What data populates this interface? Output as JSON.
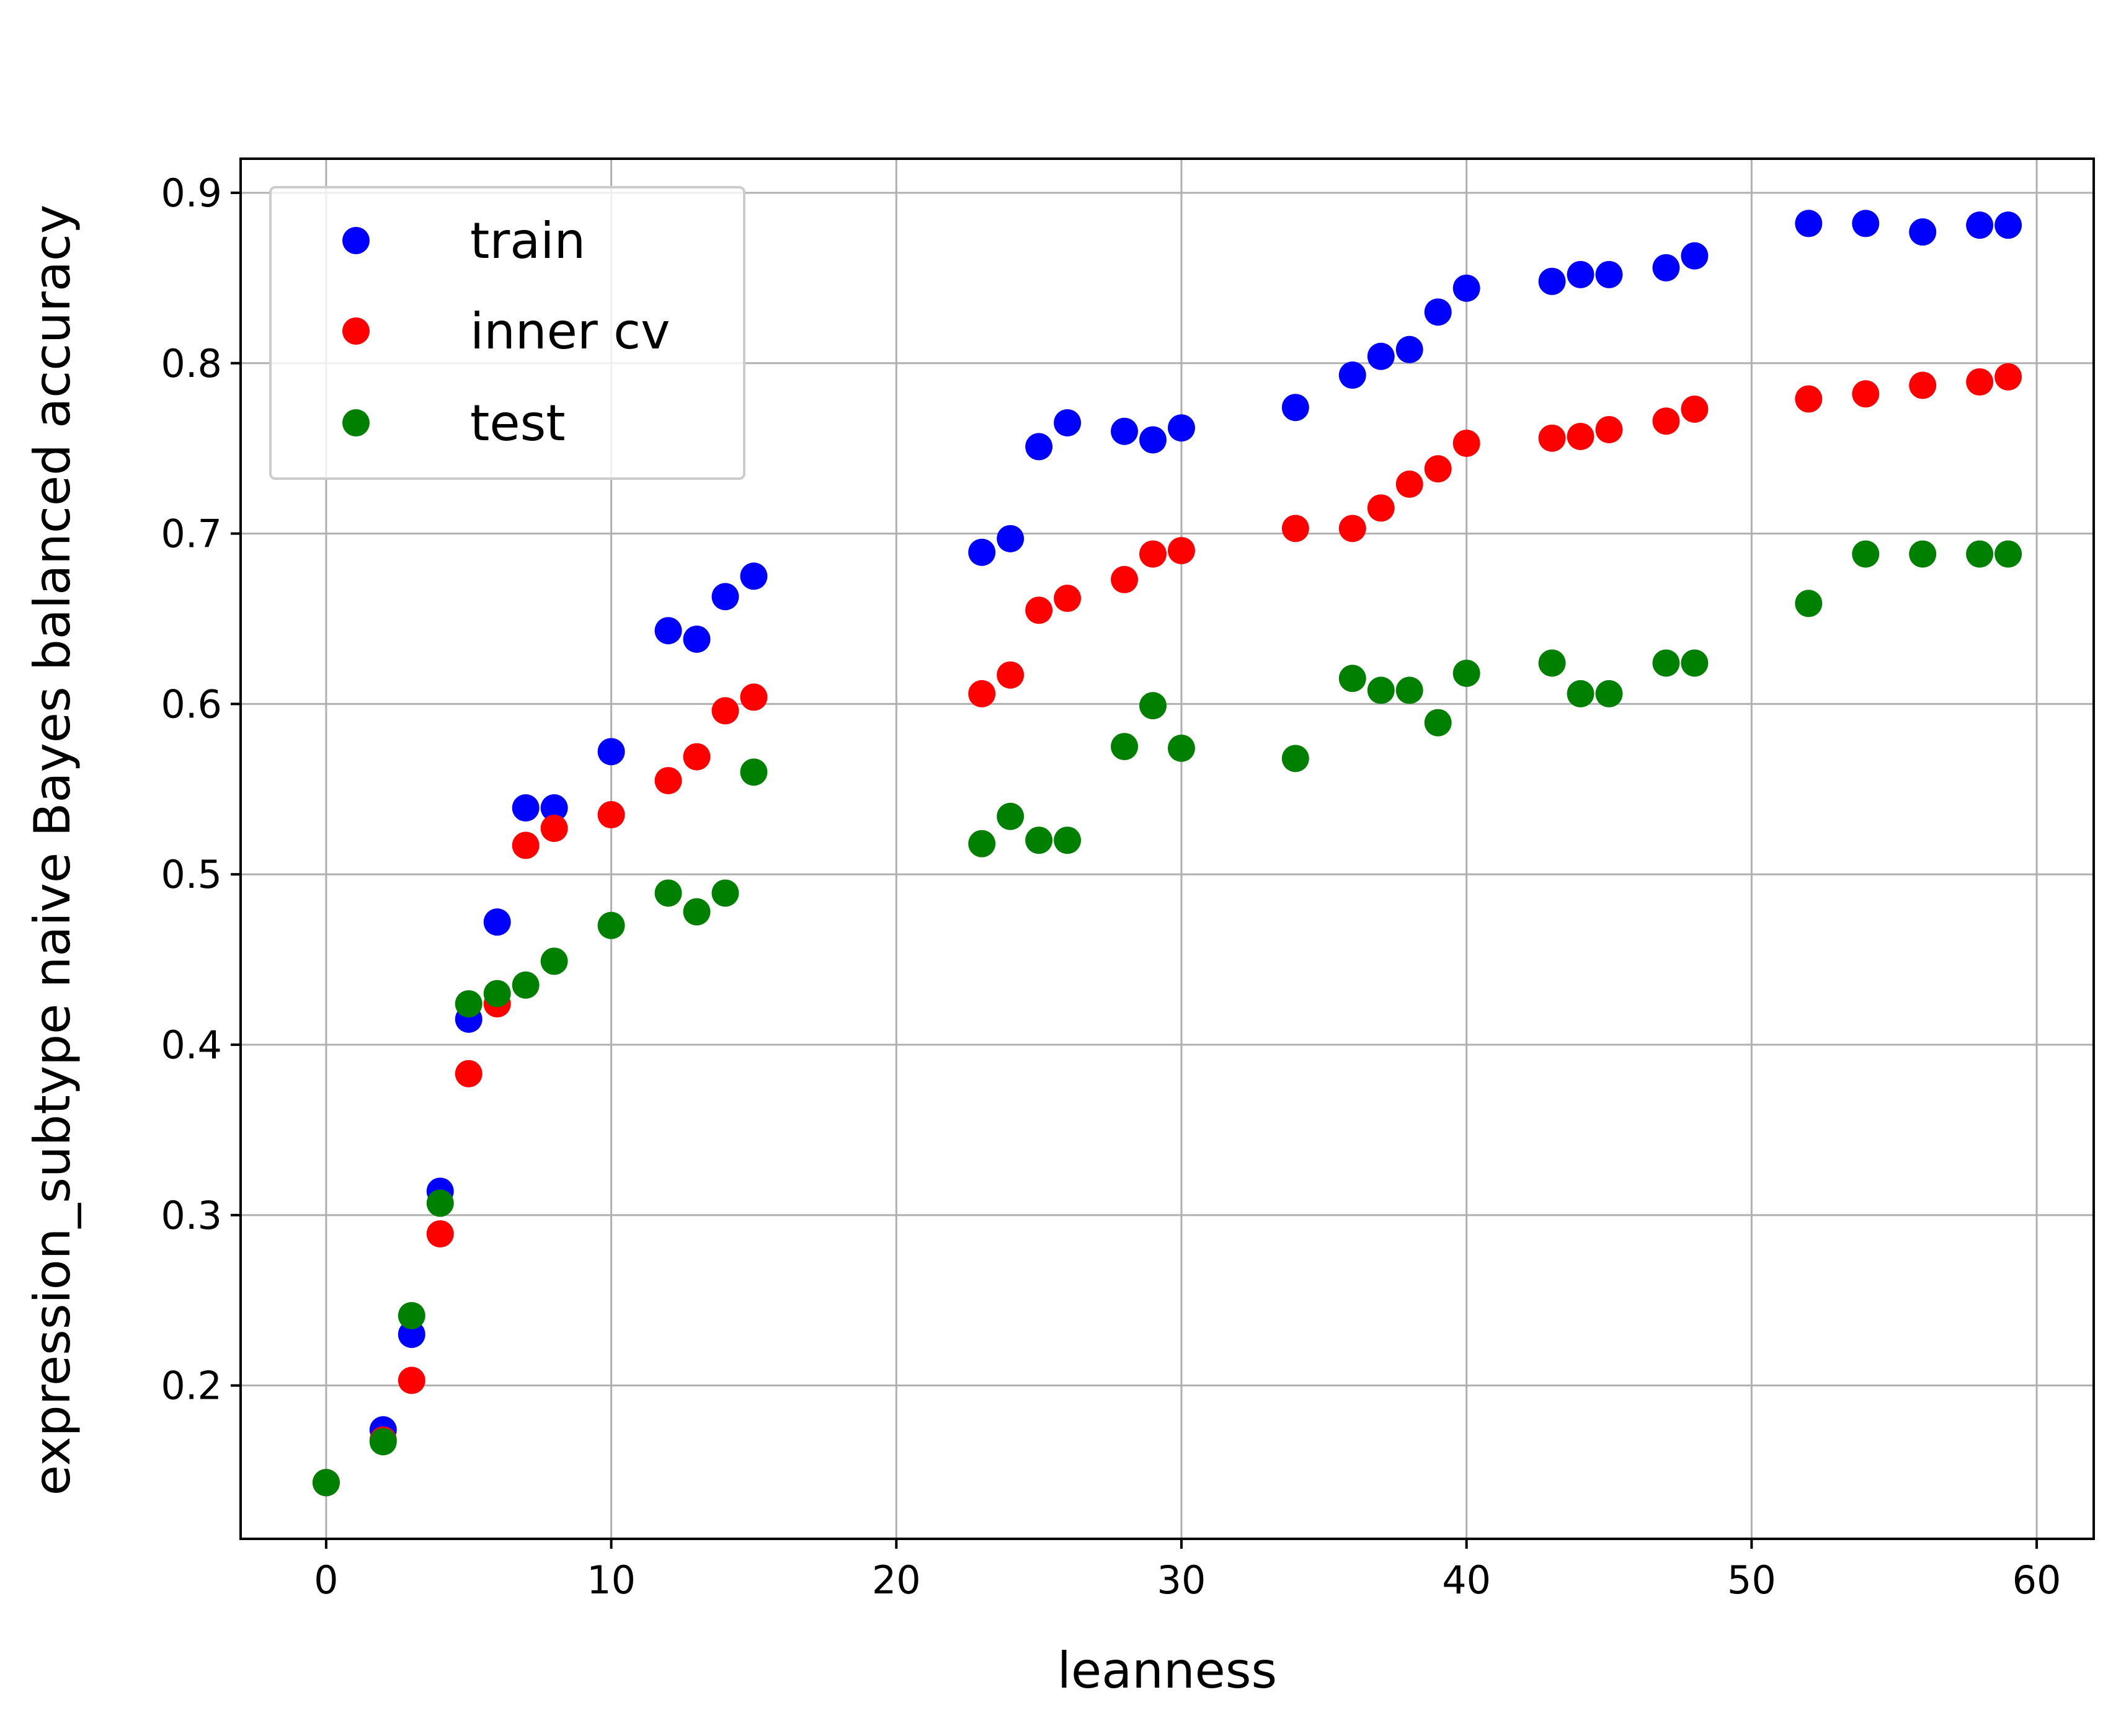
{
  "chart_data": {
    "type": "scatter",
    "xlabel": "leanness",
    "ylabel": "expression_subtype naive Bayes balanced accuracy",
    "xlim": [
      -3,
      62
    ],
    "ylim": [
      0.11,
      0.92
    ],
    "xticks": [
      0,
      10,
      20,
      30,
      40,
      50,
      60
    ],
    "yticks": [
      0.2,
      0.3,
      0.4,
      0.5,
      0.6,
      0.7,
      0.8,
      0.9
    ],
    "xtick_labels": [
      "0",
      "10",
      "20",
      "30",
      "40",
      "50",
      "60"
    ],
    "ytick_labels": [
      "0.2",
      "0.3",
      "0.4",
      "0.5",
      "0.6",
      "0.7",
      "0.8",
      "0.9"
    ],
    "grid": true,
    "legend_position": "top-left",
    "series": [
      {
        "name": "train",
        "color": "#0000ff",
        "points": [
          [
            0,
            0.143
          ],
          [
            2,
            0.174
          ],
          [
            3,
            0.23
          ],
          [
            4,
            0.314
          ],
          [
            5,
            0.415
          ],
          [
            6,
            0.472
          ],
          [
            7,
            0.539
          ],
          [
            8,
            0.539
          ],
          [
            10,
            0.572
          ],
          [
            12,
            0.643
          ],
          [
            13,
            0.638
          ],
          [
            14,
            0.663
          ],
          [
            15,
            0.675
          ],
          [
            23,
            0.689
          ],
          [
            24,
            0.697
          ],
          [
            25,
            0.751
          ],
          [
            26,
            0.765
          ],
          [
            28,
            0.76
          ],
          [
            29,
            0.755
          ],
          [
            30,
            0.762
          ],
          [
            34,
            0.774
          ],
          [
            36,
            0.793
          ],
          [
            37,
            0.804
          ],
          [
            38,
            0.808
          ],
          [
            39,
            0.83
          ],
          [
            40,
            0.844
          ],
          [
            43,
            0.848
          ],
          [
            44,
            0.852
          ],
          [
            45,
            0.852
          ],
          [
            47,
            0.856
          ],
          [
            48,
            0.863
          ],
          [
            52,
            0.882
          ],
          [
            54,
            0.882
          ],
          [
            56,
            0.877
          ],
          [
            58,
            0.881
          ],
          [
            59,
            0.881
          ]
        ]
      },
      {
        "name": "inner cv",
        "color": "#ff0000",
        "points": [
          [
            0,
            0.143
          ],
          [
            2,
            0.168
          ],
          [
            3,
            0.203
          ],
          [
            4,
            0.289
          ],
          [
            5,
            0.383
          ],
          [
            6,
            0.424
          ],
          [
            7,
            0.517
          ],
          [
            8,
            0.527
          ],
          [
            10,
            0.535
          ],
          [
            12,
            0.555
          ],
          [
            13,
            0.569
          ],
          [
            14,
            0.596
          ],
          [
            15,
            0.604
          ],
          [
            23,
            0.606
          ],
          [
            24,
            0.617
          ],
          [
            25,
            0.655
          ],
          [
            26,
            0.662
          ],
          [
            28,
            0.673
          ],
          [
            29,
            0.688
          ],
          [
            30,
            0.69
          ],
          [
            34,
            0.703
          ],
          [
            36,
            0.703
          ],
          [
            37,
            0.715
          ],
          [
            38,
            0.729
          ],
          [
            39,
            0.738
          ],
          [
            40,
            0.753
          ],
          [
            43,
            0.756
          ],
          [
            44,
            0.757
          ],
          [
            45,
            0.761
          ],
          [
            47,
            0.766
          ],
          [
            48,
            0.773
          ],
          [
            52,
            0.779
          ],
          [
            54,
            0.782
          ],
          [
            56,
            0.787
          ],
          [
            58,
            0.789
          ],
          [
            59,
            0.792
          ]
        ]
      },
      {
        "name": "test",
        "color": "#008000",
        "points": [
          [
            0,
            0.143
          ],
          [
            2,
            0.167
          ],
          [
            3,
            0.241
          ],
          [
            4,
            0.307
          ],
          [
            5,
            0.424
          ],
          [
            6,
            0.43
          ],
          [
            7,
            0.435
          ],
          [
            8,
            0.449
          ],
          [
            10,
            0.47
          ],
          [
            12,
            0.489
          ],
          [
            13,
            0.478
          ],
          [
            14,
            0.489
          ],
          [
            15,
            0.56
          ],
          [
            23,
            0.518
          ],
          [
            24,
            0.534
          ],
          [
            25,
            0.52
          ],
          [
            26,
            0.52
          ],
          [
            28,
            0.575
          ],
          [
            29,
            0.599
          ],
          [
            30,
            0.574
          ],
          [
            34,
            0.568
          ],
          [
            36,
            0.615
          ],
          [
            37,
            0.608
          ],
          [
            38,
            0.608
          ],
          [
            39,
            0.589
          ],
          [
            40,
            0.618
          ],
          [
            43,
            0.624
          ],
          [
            44,
            0.606
          ],
          [
            45,
            0.606
          ],
          [
            47,
            0.624
          ],
          [
            48,
            0.624
          ],
          [
            52,
            0.659
          ],
          [
            54,
            0.688
          ],
          [
            56,
            0.688
          ],
          [
            58,
            0.688
          ],
          [
            59,
            0.688
          ]
        ]
      }
    ]
  }
}
